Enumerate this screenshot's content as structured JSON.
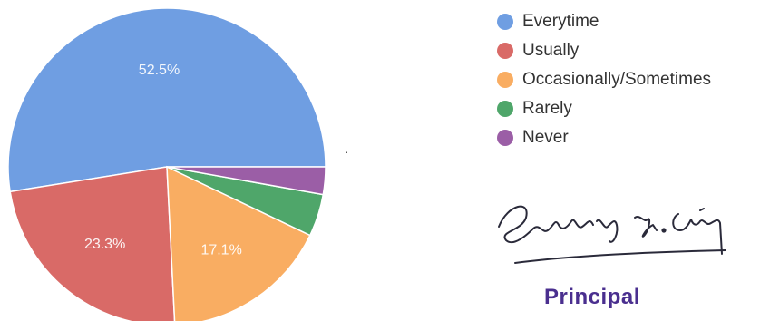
{
  "chart_data": {
    "type": "pie",
    "title": "",
    "slices": [
      {
        "label": "Everytime",
        "value": 52.5,
        "display": "52.5%",
        "color": "#6f9ee2"
      },
      {
        "label": "Usually",
        "value": 23.3,
        "display": "23.3%",
        "color": "#d96a67"
      },
      {
        "label": "Occasionally/Sometimes",
        "value": 17.1,
        "display": "17.1%",
        "color": "#f9ad62"
      },
      {
        "label": "Rarely",
        "value": 4.3,
        "display": "",
        "color": "#4fa66a"
      },
      {
        "label": "Never",
        "value": 2.8,
        "display": "",
        "color": "#9b5ea6"
      }
    ],
    "start_angle_deg": 0,
    "direction": "counterclockwise",
    "legend_position": "right"
  },
  "legend": {
    "items": [
      "Everytime",
      "Usually",
      "Occasionally/Sometimes",
      "Rarely",
      "Never"
    ]
  },
  "footer": {
    "principal": "Principal"
  }
}
